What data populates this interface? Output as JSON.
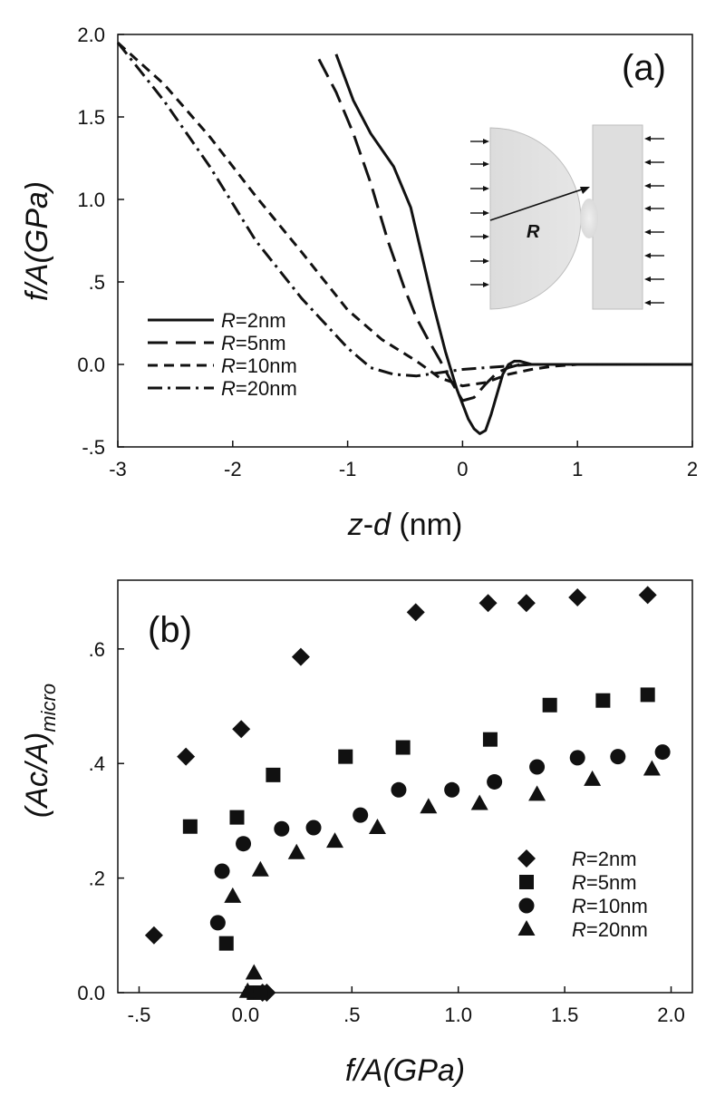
{
  "chart_data": [
    {
      "type": "line",
      "panel_label": "(a)",
      "xlabel_parts": [
        "z",
        "-",
        "d",
        " (nm)"
      ],
      "ylabel_parts": [
        "f/A(GPa)"
      ],
      "xlim": [
        -3,
        2
      ],
      "ylim": [
        -0.5,
        2.0
      ],
      "x_ticks": [
        -3,
        -2,
        -1,
        0,
        1,
        2
      ],
      "x_tick_labels": [
        "-3",
        "-2",
        "-1",
        "0",
        "1",
        "2"
      ],
      "y_ticks": [
        -0.5,
        0.0,
        0.5,
        1.0,
        1.5,
        2.0
      ],
      "y_tick_labels": [
        "-.5",
        "0.0",
        ".5",
        "1.0",
        "1.5",
        "2.0"
      ],
      "legend_position": "lower-left",
      "series": [
        {
          "name": "R=2nm",
          "legend_prefix": "R",
          "legend_suffix": "=2nm",
          "style": "solid",
          "x": [
            -1.1,
            -0.95,
            -0.8,
            -0.6,
            -0.45,
            -0.35,
            -0.25,
            -0.15,
            -0.05,
            0.05,
            0.1,
            0.15,
            0.2,
            0.25,
            0.3,
            0.35,
            0.4,
            0.45,
            0.5,
            0.6,
            0.7,
            0.8,
            1.0,
            1.5,
            2.0
          ],
          "y": [
            1.88,
            1.6,
            1.4,
            1.2,
            0.95,
            0.65,
            0.35,
            0.08,
            -0.15,
            -0.33,
            -0.39,
            -0.42,
            -0.4,
            -0.3,
            -0.18,
            -0.06,
            0.0,
            0.02,
            0.02,
            0.0,
            0.0,
            0.0,
            0.0,
            0.0,
            0.0
          ]
        },
        {
          "name": "R=5nm",
          "legend_prefix": "R",
          "legend_suffix": "=5nm",
          "style": "long-dash",
          "x": [
            -1.25,
            -1.1,
            -0.95,
            -0.8,
            -0.65,
            -0.5,
            -0.4,
            -0.3,
            -0.2,
            -0.1,
            0.0,
            0.1,
            0.2,
            0.3,
            0.4,
            0.5,
            0.7,
            1.0,
            1.5,
            2.0
          ],
          "y": [
            1.85,
            1.65,
            1.4,
            1.1,
            0.75,
            0.45,
            0.28,
            0.15,
            0.03,
            -0.1,
            -0.22,
            -0.2,
            -0.12,
            -0.05,
            -0.02,
            0.0,
            0.0,
            0.0,
            0.0,
            0.0
          ]
        },
        {
          "name": "R=10nm",
          "legend_prefix": "R",
          "legend_suffix": "=10nm",
          "style": "short-dash",
          "x": [
            -3.0,
            -2.6,
            -2.2,
            -1.8,
            -1.4,
            -1.0,
            -0.7,
            -0.4,
            -0.2,
            0.0,
            0.2,
            0.4,
            0.6,
            0.8,
            1.0,
            1.5,
            2.0
          ],
          "y": [
            1.95,
            1.7,
            1.38,
            1.02,
            0.68,
            0.33,
            0.15,
            0.02,
            -0.08,
            -0.13,
            -0.11,
            -0.06,
            -0.03,
            -0.01,
            0.0,
            0.0,
            0.0
          ]
        },
        {
          "name": "R=20nm",
          "legend_prefix": "R",
          "legend_suffix": "=20nm",
          "style": "dash-dot",
          "x": [
            -3.0,
            -2.6,
            -2.2,
            -1.8,
            -1.4,
            -1.0,
            -0.8,
            -0.6,
            -0.4,
            -0.2,
            0.0,
            0.2,
            0.4,
            0.6,
            1.0,
            1.5,
            2.0
          ],
          "y": [
            1.95,
            1.6,
            1.2,
            0.75,
            0.4,
            0.1,
            -0.02,
            -0.06,
            -0.07,
            -0.05,
            -0.03,
            -0.02,
            -0.01,
            0.0,
            0.0,
            0.0,
            0.0
          ]
        }
      ],
      "inset": {
        "label": "R"
      }
    },
    {
      "type": "scatter",
      "panel_label": "(b)",
      "xlabel_parts": [
        "f/A(GPa)"
      ],
      "ylabel_parts": [
        "(Ac/A)",
        "micro"
      ],
      "xlim": [
        -0.6,
        2.1
      ],
      "ylim": [
        0.0,
        0.72
      ],
      "x_ticks": [
        -0.5,
        0.0,
        0.5,
        1.0,
        1.5,
        2.0
      ],
      "x_tick_labels": [
        "-.5",
        "0.0",
        ".5",
        "1.0",
        "1.5",
        "2.0"
      ],
      "y_ticks": [
        0.0,
        0.2,
        0.4,
        0.6
      ],
      "y_tick_labels": [
        "0.0",
        ".2",
        ".4",
        ".6"
      ],
      "legend_position": "lower-right",
      "series": [
        {
          "name": "R=2nm",
          "legend_prefix": "R",
          "legend_suffix": "=2nm",
          "marker": "diamond",
          "x": [
            -0.43,
            -0.28,
            -0.02,
            0.08,
            0.1,
            0.26,
            0.8,
            1.14,
            1.32,
            1.56,
            1.89
          ],
          "y": [
            0.1,
            0.412,
            0.46,
            0.0,
            0.0,
            0.586,
            0.664,
            0.68,
            0.68,
            0.69,
            0.694
          ]
        },
        {
          "name": "R=5nm",
          "legend_prefix": "R",
          "legend_suffix": "=5nm",
          "marker": "square",
          "x": [
            -0.26,
            -0.09,
            -0.04,
            0.04,
            0.07,
            0.13,
            0.47,
            0.74,
            1.15,
            1.43,
            1.68,
            1.89
          ],
          "y": [
            0.29,
            0.086,
            0.306,
            0.0,
            0.0,
            0.38,
            0.412,
            0.428,
            0.442,
            0.502,
            0.51,
            0.52
          ]
        },
        {
          "name": "R=10nm",
          "legend_prefix": "R",
          "legend_suffix": "=10nm",
          "marker": "circle",
          "x": [
            -0.13,
            -0.11,
            -0.01,
            0.17,
            0.32,
            0.54,
            0.72,
            0.97,
            1.17,
            1.37,
            1.56,
            1.75,
            1.96
          ],
          "y": [
            0.122,
            0.212,
            0.26,
            0.286,
            0.288,
            0.31,
            0.354,
            0.354,
            0.368,
            0.394,
            0.41,
            0.412,
            0.42
          ]
        },
        {
          "name": "R=20nm",
          "legend_prefix": "R",
          "legend_suffix": "=20nm",
          "marker": "triangle",
          "x": [
            -0.06,
            0.01,
            0.04,
            0.07,
            0.24,
            0.42,
            0.62,
            0.86,
            1.1,
            1.37,
            1.63,
            1.91
          ],
          "y": [
            0.168,
            0.002,
            0.034,
            0.214,
            0.244,
            0.264,
            0.288,
            0.324,
            0.33,
            0.346,
            0.372,
            0.39
          ]
        }
      ]
    }
  ]
}
